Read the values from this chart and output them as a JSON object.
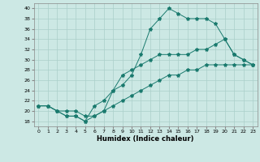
{
  "xlabel": "Humidex (Indice chaleur)",
  "x_values": [
    0,
    1,
    2,
    3,
    4,
    5,
    6,
    7,
    8,
    9,
    10,
    11,
    12,
    13,
    14,
    15,
    16,
    17,
    18,
    19,
    20,
    21,
    22,
    23
  ],
  "line1_y": [
    21,
    21,
    20,
    19,
    19,
    18,
    19,
    20,
    24,
    25,
    27,
    31,
    36,
    38,
    40,
    39,
    38,
    38,
    38,
    37,
    34,
    31,
    30,
    29
  ],
  "line2_y": [
    21,
    21,
    20,
    19,
    19,
    18,
    21,
    22,
    24,
    27,
    28,
    29,
    30,
    31,
    31,
    31,
    31,
    32,
    32,
    33,
    34,
    31,
    30,
    29
  ],
  "line3_y": [
    21,
    21,
    20,
    20,
    20,
    19,
    19,
    20,
    21,
    22,
    23,
    24,
    25,
    26,
    27,
    27,
    28,
    28,
    29,
    29,
    29,
    29,
    29,
    29
  ],
  "line_color": "#1a7a6e",
  "bg_color": "#cce8e4",
  "grid_color": "#aacfca",
  "ylim": [
    17,
    41
  ],
  "xlim": [
    -0.5,
    23.5
  ],
  "yticks": [
    18,
    20,
    22,
    24,
    26,
    28,
    30,
    32,
    34,
    36,
    38,
    40
  ],
  "xticks": [
    0,
    1,
    2,
    3,
    4,
    5,
    6,
    7,
    8,
    9,
    10,
    11,
    12,
    13,
    14,
    15,
    16,
    17,
    18,
    19,
    20,
    21,
    22,
    23
  ]
}
